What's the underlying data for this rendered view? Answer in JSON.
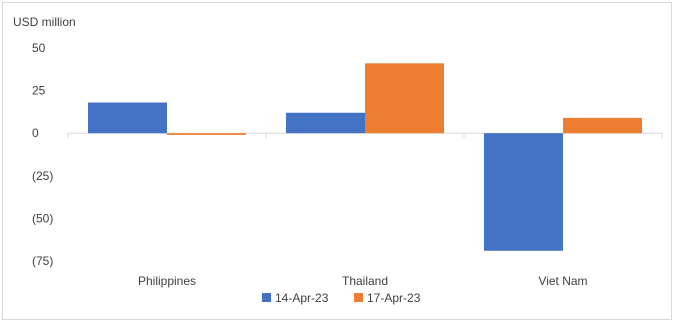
{
  "chart_data": {
    "type": "bar",
    "ylabel": "USD million",
    "categories": [
      "Philippines",
      "Thailand",
      "Viet Nam"
    ],
    "series": [
      {
        "name": "14-Apr-23",
        "color": "#4472c4",
        "values": [
          18,
          12,
          -69
        ]
      },
      {
        "name": "17-Apr-23",
        "color": "#ed7d31",
        "values": [
          -1,
          41,
          9
        ]
      }
    ],
    "ylim": [
      -75,
      50
    ],
    "yticks": [
      50,
      25,
      0,
      -25,
      -50,
      -75
    ],
    "ytick_labels": [
      "50",
      "25",
      "0",
      "(25)",
      "(50)",
      "(75)"
    ],
    "grid": false,
    "legend_position": "bottom"
  }
}
